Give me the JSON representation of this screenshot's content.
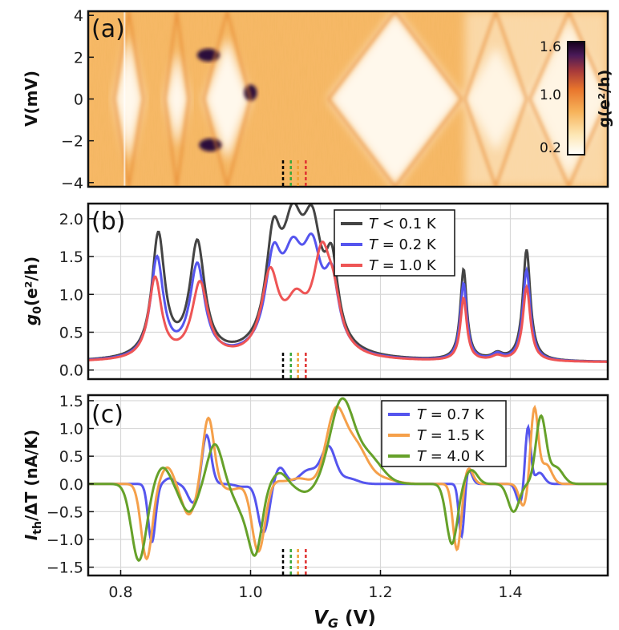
{
  "chart_data": [
    {
      "panel": "a",
      "type": "heatmap",
      "label": "(a)",
      "ylabel": "V(mV)",
      "ylim": [
        -4.2,
        4.2
      ],
      "yticks": [
        "4",
        "2",
        "0",
        "−2",
        "−4"
      ],
      "ytick_values": [
        4,
        2,
        0,
        -2,
        -4
      ],
      "xlim": [
        0.75,
        1.55
      ],
      "colorbar": {
        "label": "g(e²/h)",
        "ticks": [
          "1.6",
          "1.0",
          "0.2"
        ],
        "tick_values": [
          1.6,
          1.0,
          0.2
        ]
      },
      "colors": [
        "#ffffff",
        "#fde6b3",
        "#f7b35a",
        "#e8752c",
        "#a83a3a",
        "#4a1a58",
        "#16001c"
      ],
      "markers": [
        {
          "x": 1.05,
          "color": "#000000"
        },
        {
          "x": 1.062,
          "color": "#3aa63a"
        },
        {
          "x": 1.073,
          "color": "#f0a030"
        },
        {
          "x": 1.085,
          "color": "#e03030"
        }
      ]
    },
    {
      "panel": "b",
      "type": "line",
      "label": "(b)",
      "ylabel": "g0 (e²/h)",
      "ylabel_main": "g",
      "ylabel_sub": "0",
      "ylabel_rest": "(e²/h)",
      "ylim": [
        -0.12,
        2.2
      ],
      "yticks": [
        "0.0",
        "0.5",
        "1.0",
        "1.5",
        "2.0"
      ],
      "ytick_values": [
        0,
        0.5,
        1.0,
        1.5,
        2.0
      ],
      "xlim": [
        0.75,
        1.55
      ],
      "legend_position": "top-center",
      "series": [
        {
          "name": "T < 0.1 K",
          "legend_T": "T",
          "legend_rest": " < 0.1 K",
          "color": "#444444",
          "baseline": 0.1,
          "peaks": [
            [
              0.858,
              1.62,
              0.012
            ],
            [
              0.918,
              1.5,
              0.014
            ],
            [
              1.035,
              1.3,
              0.014
            ],
            [
              1.065,
              1.45,
              0.02
            ],
            [
              1.095,
              1.4,
              0.018
            ],
            [
              1.125,
              1.0,
              0.012
            ],
            [
              1.328,
              1.2,
              0.006
            ],
            [
              1.38,
              0.08,
              0.01
            ],
            [
              1.425,
              1.47,
              0.007
            ]
          ]
        },
        {
          "name": "T = 0.2 K",
          "legend_T": "T",
          "legend_rest": " = 0.2 K",
          "color": "#5555ee",
          "baseline": 0.1,
          "peaks": [
            [
              0.856,
              1.32,
              0.012
            ],
            [
              0.918,
              1.22,
              0.014
            ],
            [
              1.035,
              1.1,
              0.015
            ],
            [
              1.065,
              1.08,
              0.02
            ],
            [
              1.095,
              1.15,
              0.018
            ],
            [
              1.125,
              0.85,
              0.013
            ],
            [
              1.328,
              1.02,
              0.006
            ],
            [
              1.38,
              0.08,
              0.01
            ],
            [
              1.425,
              1.2,
              0.007
            ]
          ]
        },
        {
          "name": "T = 1.0 K",
          "legend_T": "T",
          "legend_rest": " = 1.0 K",
          "color": "#ee5555",
          "baseline": 0.1,
          "peaks": [
            [
              0.853,
              1.07,
              0.012
            ],
            [
              0.922,
              1.0,
              0.015
            ],
            [
              1.03,
              1.05,
              0.016
            ],
            [
              1.07,
              0.6,
              0.02
            ],
            [
              1.11,
              1.25,
              0.017
            ],
            [
              1.128,
              0.5,
              0.013
            ],
            [
              1.328,
              0.83,
              0.006
            ],
            [
              1.38,
              0.06,
              0.01
            ],
            [
              1.425,
              0.98,
              0.007
            ]
          ]
        }
      ],
      "markers": [
        {
          "x": 1.05,
          "color": "#000000"
        },
        {
          "x": 1.062,
          "color": "#3aa63a"
        },
        {
          "x": 1.073,
          "color": "#f0a030"
        },
        {
          "x": 1.085,
          "color": "#e03030"
        }
      ]
    },
    {
      "panel": "c",
      "type": "line",
      "label": "(c)",
      "ylabel": "Ith/ΔT (nA/K)",
      "ylabel_main": "I",
      "ylabel_sub": "th",
      "ylabel_rest": "/ΔT (nA/K)",
      "ylim": [
        -1.65,
        1.6
      ],
      "yticks": [
        "−1.5",
        "−1.0",
        "−0.5",
        "0.0",
        "0.5",
        "1.0",
        "1.5"
      ],
      "ytick_values": [
        -1.5,
        -1.0,
        -0.5,
        0,
        0.5,
        1.0,
        1.5
      ],
      "xlim": [
        0.75,
        1.55
      ],
      "xlabel": "VG (V)",
      "xlabel_main": "V",
      "xlabel_sub": "G",
      "xlabel_rest": " (V)",
      "xticks": [
        "0.8",
        "1.0",
        "1.2",
        "1.4"
      ],
      "xtick_values": [
        0.8,
        1.0,
        1.2,
        1.4
      ],
      "legend_position": "top-right",
      "series": [
        {
          "name": "T = 0.7 K",
          "legend_T": "T",
          "legend_rest": " = 0.7 K",
          "color": "#5555ee",
          "terms": [
            [
              0.848,
              -1.05,
              0.008
            ],
            [
              0.875,
              0.1,
              0.01
            ],
            [
              0.912,
              -0.35,
              0.012
            ],
            [
              0.932,
              0.9,
              0.01
            ],
            [
              0.988,
              -0.05,
              0.015
            ],
            [
              1.02,
              -0.88,
              0.012
            ],
            [
              1.045,
              0.3,
              0.012
            ],
            [
              1.09,
              0.25,
              0.02
            ],
            [
              1.12,
              0.65,
              0.015
            ],
            [
              1.15,
              0.1,
              0.02
            ],
            [
              1.325,
              -1.0,
              0.006
            ],
            [
              1.335,
              0.28,
              0.008
            ],
            [
              1.415,
              -0.35,
              0.008
            ],
            [
              1.427,
              1.05,
              0.006
            ],
            [
              1.445,
              0.2,
              0.01
            ]
          ]
        },
        {
          "name": "T = 1.5 K",
          "legend_T": "T",
          "legend_rest": " = 1.5 K",
          "color": "#f5a04a",
          "terms": [
            [
              0.84,
              -1.35,
              0.012
            ],
            [
              0.872,
              0.3,
              0.013
            ],
            [
              0.905,
              -0.55,
              0.015
            ],
            [
              0.935,
              1.2,
              0.012
            ],
            [
              0.97,
              -0.1,
              0.018
            ],
            [
              1.012,
              -1.22,
              0.014
            ],
            [
              1.04,
              0.05,
              0.015
            ],
            [
              1.075,
              0.1,
              0.02
            ],
            [
              1.13,
              1.2,
              0.02
            ],
            [
              1.16,
              0.7,
              0.025
            ],
            [
              1.2,
              0.1,
              0.03
            ],
            [
              1.318,
              -1.2,
              0.009
            ],
            [
              1.335,
              0.3,
              0.01
            ],
            [
              1.42,
              -0.4,
              0.009
            ],
            [
              1.437,
              1.35,
              0.008
            ],
            [
              1.455,
              0.35,
              0.012
            ]
          ]
        },
        {
          "name": "T = 4.0 K",
          "legend_T": "T",
          "legend_rest": " = 4.0 K",
          "color": "#66a12a",
          "terms": [
            [
              0.828,
              -1.38,
              0.016
            ],
            [
              0.865,
              0.3,
              0.015
            ],
            [
              0.905,
              -0.5,
              0.018
            ],
            [
              0.945,
              0.72,
              0.016
            ],
            [
              0.99,
              -0.5,
              0.02
            ],
            [
              1.008,
              -1.05,
              0.014
            ],
            [
              1.045,
              0.2,
              0.015
            ],
            [
              1.085,
              -0.15,
              0.02
            ],
            [
              1.14,
              1.45,
              0.025
            ],
            [
              1.18,
              0.5,
              0.03
            ],
            [
              1.31,
              -1.08,
              0.012
            ],
            [
              1.34,
              0.25,
              0.013
            ],
            [
              1.405,
              -0.5,
              0.012
            ],
            [
              1.447,
              1.2,
              0.011
            ],
            [
              1.47,
              0.3,
              0.015
            ]
          ]
        }
      ],
      "markers": [
        {
          "x": 1.05,
          "color": "#000000"
        },
        {
          "x": 1.062,
          "color": "#3aa63a"
        },
        {
          "x": 1.073,
          "color": "#f0a030"
        },
        {
          "x": 1.085,
          "color": "#e03030"
        }
      ]
    }
  ]
}
